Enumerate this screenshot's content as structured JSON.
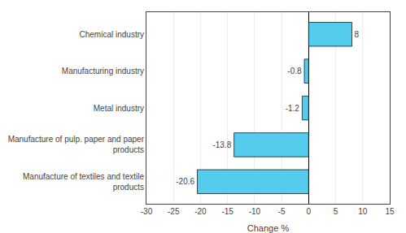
{
  "chart_data": {
    "type": "bar",
    "orientation": "horizontal",
    "categories": [
      "Manufacture of textiles and textile\nproducts",
      "Manufacture of pulp. paper and paper\nproducts",
      "Metal industry",
      "Manufacturing industry",
      "Chemical industry"
    ],
    "values": [
      -20.6,
      -13.8,
      -1.2,
      -0.8,
      8.0
    ],
    "value_labels": [
      "-20.6",
      "-13.8",
      "-1.2",
      "-0.8",
      "8"
    ],
    "data_labels": true,
    "color": "#55CCEE",
    "xlabel": "Change %",
    "xlim": [
      -30,
      15
    ],
    "xticks": [
      -30,
      -25,
      -20,
      -15,
      -10,
      -5,
      0,
      5,
      10,
      15
    ],
    "grid": true
  }
}
